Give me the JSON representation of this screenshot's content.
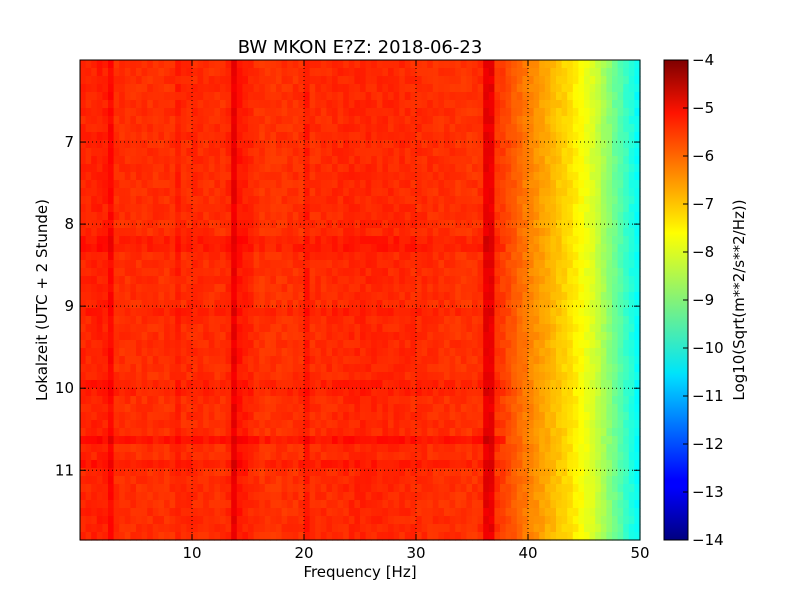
{
  "chart_data": {
    "type": "heatmap",
    "title": "BW MKON E?Z: 2018-06-23",
    "xlabel": "Frequency [Hz]",
    "ylabel": "Lokalzeit (UTC + 2 Stunde)",
    "colorbar_label": "Log10(Sqrt(m**2/s**2/Hz))",
    "colormap": "jet",
    "xlim": [
      0,
      50
    ],
    "ylim": [
      6,
      11.85
    ],
    "y_inverted": true,
    "clim": [
      -14,
      -4
    ],
    "x_ticks": [
      10,
      20,
      30,
      40,
      50
    ],
    "x_tick_labels": [
      "10",
      "20",
      "30",
      "40",
      "50"
    ],
    "y_ticks": [
      7,
      8,
      9,
      10,
      11
    ],
    "y_tick_labels": [
      "7",
      "8",
      "9",
      "10",
      "11"
    ],
    "colorbar_ticks": [
      -4,
      -5,
      -6,
      -7,
      -8,
      -9,
      -10,
      -11,
      -12,
      -13,
      -14
    ],
    "colorbar_tick_labels": [
      "−4",
      "−5",
      "−6",
      "−7",
      "−8",
      "−9",
      "−10",
      "−11",
      "−12",
      "−13",
      "−14"
    ],
    "grid": true,
    "frequency_profile": {
      "frequency": [
        0,
        1,
        2,
        3,
        5,
        8,
        10,
        13,
        14,
        16,
        20,
        25,
        30,
        35,
        36.5,
        38,
        40,
        42,
        44,
        46,
        48,
        50
      ],
      "log_psd": [
        -5.6,
        -5.6,
        -5.5,
        -5.7,
        -5.7,
        -5.7,
        -5.65,
        -5.7,
        -5.4,
        -5.75,
        -5.7,
        -5.6,
        -5.65,
        -5.75,
        -5.6,
        -5.9,
        -6.5,
        -7.0,
        -7.5,
        -8.2,
        -9.3,
        -10.3
      ]
    },
    "line_features": [
      {
        "frequency": 2.6,
        "delta": 0.35
      },
      {
        "frequency": 8.8,
        "delta": 0.15
      },
      {
        "frequency": 13.7,
        "delta": 0.4
      },
      {
        "frequency": 20.3,
        "delta": 0.2
      },
      {
        "frequency": 36.5,
        "delta": 0.6
      }
    ],
    "time_features": [
      {
        "time": 8.25,
        "delta": 0.15
      },
      {
        "time": 9.1,
        "delta": 0.1
      },
      {
        "time": 10.0,
        "delta": 0.1
      },
      {
        "time": 10.65,
        "delta": 0.25
      },
      {
        "time": 10.9,
        "delta": 0.15
      }
    ]
  }
}
